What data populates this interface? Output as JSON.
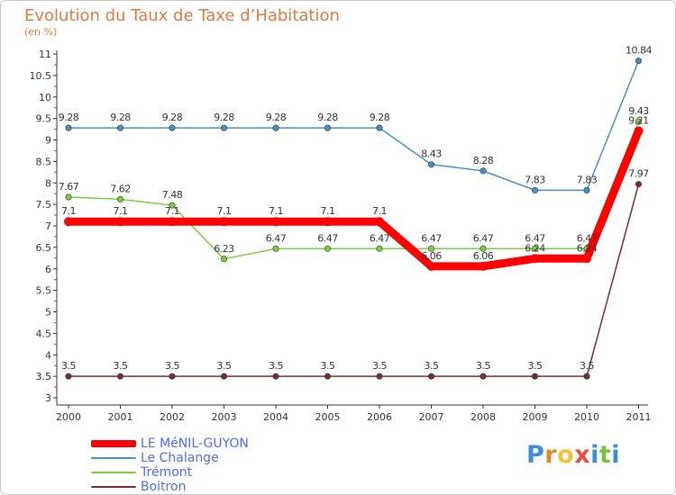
{
  "header": {
    "title": "Evolution du Taux de Taxe d’Habitation",
    "subtitle": "(en %)"
  },
  "brand": {
    "letters": [
      "P",
      "r",
      "o",
      "x",
      "i",
      "t",
      "i"
    ],
    "colors": [
      "#3f8fd6",
      "#e58a2a",
      "#f0c43a",
      "#e74c3c",
      "#3f8fd6",
      "#7bc043",
      "#3f8fd6"
    ]
  },
  "chart_data": {
    "type": "line",
    "title": "Evolution du Taux de Taxe d’Habitation",
    "subtitle": "(en %)",
    "x": [
      "2000",
      "2001",
      "2002",
      "2003",
      "2004",
      "2005",
      "2006",
      "2007",
      "2008",
      "2009",
      "2010",
      "2011"
    ],
    "ylim": [
      3,
      11
    ],
    "yticks": [
      "3",
      "3.5",
      "4",
      "4.5",
      "5",
      "5.5",
      "6",
      "6.5",
      "7",
      "7.5",
      "8",
      "8.5",
      "9",
      "9.5",
      "10",
      "10.5",
      "11"
    ],
    "grid": false,
    "legend_position": "bottom-left",
    "series": [
      {
        "name": "LE MéNIL-GUYON",
        "color": "#ff0000",
        "values": [
          7.1,
          7.1,
          7.1,
          7.1,
          7.1,
          7.1,
          7.1,
          6.06,
          6.06,
          6.24,
          6.24,
          9.21
        ],
        "labels": [
          "7.1",
          "7.1",
          "7.1",
          "7.1",
          "7.1",
          "7.1",
          "7.1",
          "6.06",
          "6.06",
          "6.24",
          "6.24",
          "9.21"
        ]
      },
      {
        "name": "Le Chalange",
        "color": "#4a90c8",
        "values": [
          9.28,
          9.28,
          9.28,
          9.28,
          9.28,
          9.28,
          9.28,
          8.43,
          8.28,
          7.83,
          7.83,
          10.84
        ],
        "labels": [
          "9.28",
          "9.28",
          "9.28",
          "9.28",
          "9.28",
          "9.28",
          "9.28",
          "8.43",
          "8.28",
          "7.83",
          "7.83",
          "10.84"
        ]
      },
      {
        "name": "Trémont",
        "color": "#77d13f",
        "values": [
          7.67,
          7.62,
          7.48,
          6.23,
          6.47,
          6.47,
          6.47,
          6.47,
          6.47,
          6.47,
          6.47,
          9.43
        ],
        "labels": [
          "7.67",
          "7.62",
          "7.48",
          "6.23",
          "6.47",
          "6.47",
          "6.47",
          "6.47",
          "6.47",
          "6.47",
          "6.47",
          "9.43"
        ]
      },
      {
        "name": "Boitron",
        "color": "#7a2e2e",
        "values": [
          3.5,
          3.5,
          3.5,
          3.5,
          3.5,
          3.5,
          3.5,
          3.5,
          3.5,
          3.5,
          3.5,
          7.97
        ],
        "labels": [
          "3.5",
          "3.5",
          "3.5",
          "3.5",
          "3.5",
          "3.5",
          "3.5",
          "3.5",
          "3.5",
          "3.5",
          "3.5",
          "7.97"
        ]
      }
    ]
  }
}
